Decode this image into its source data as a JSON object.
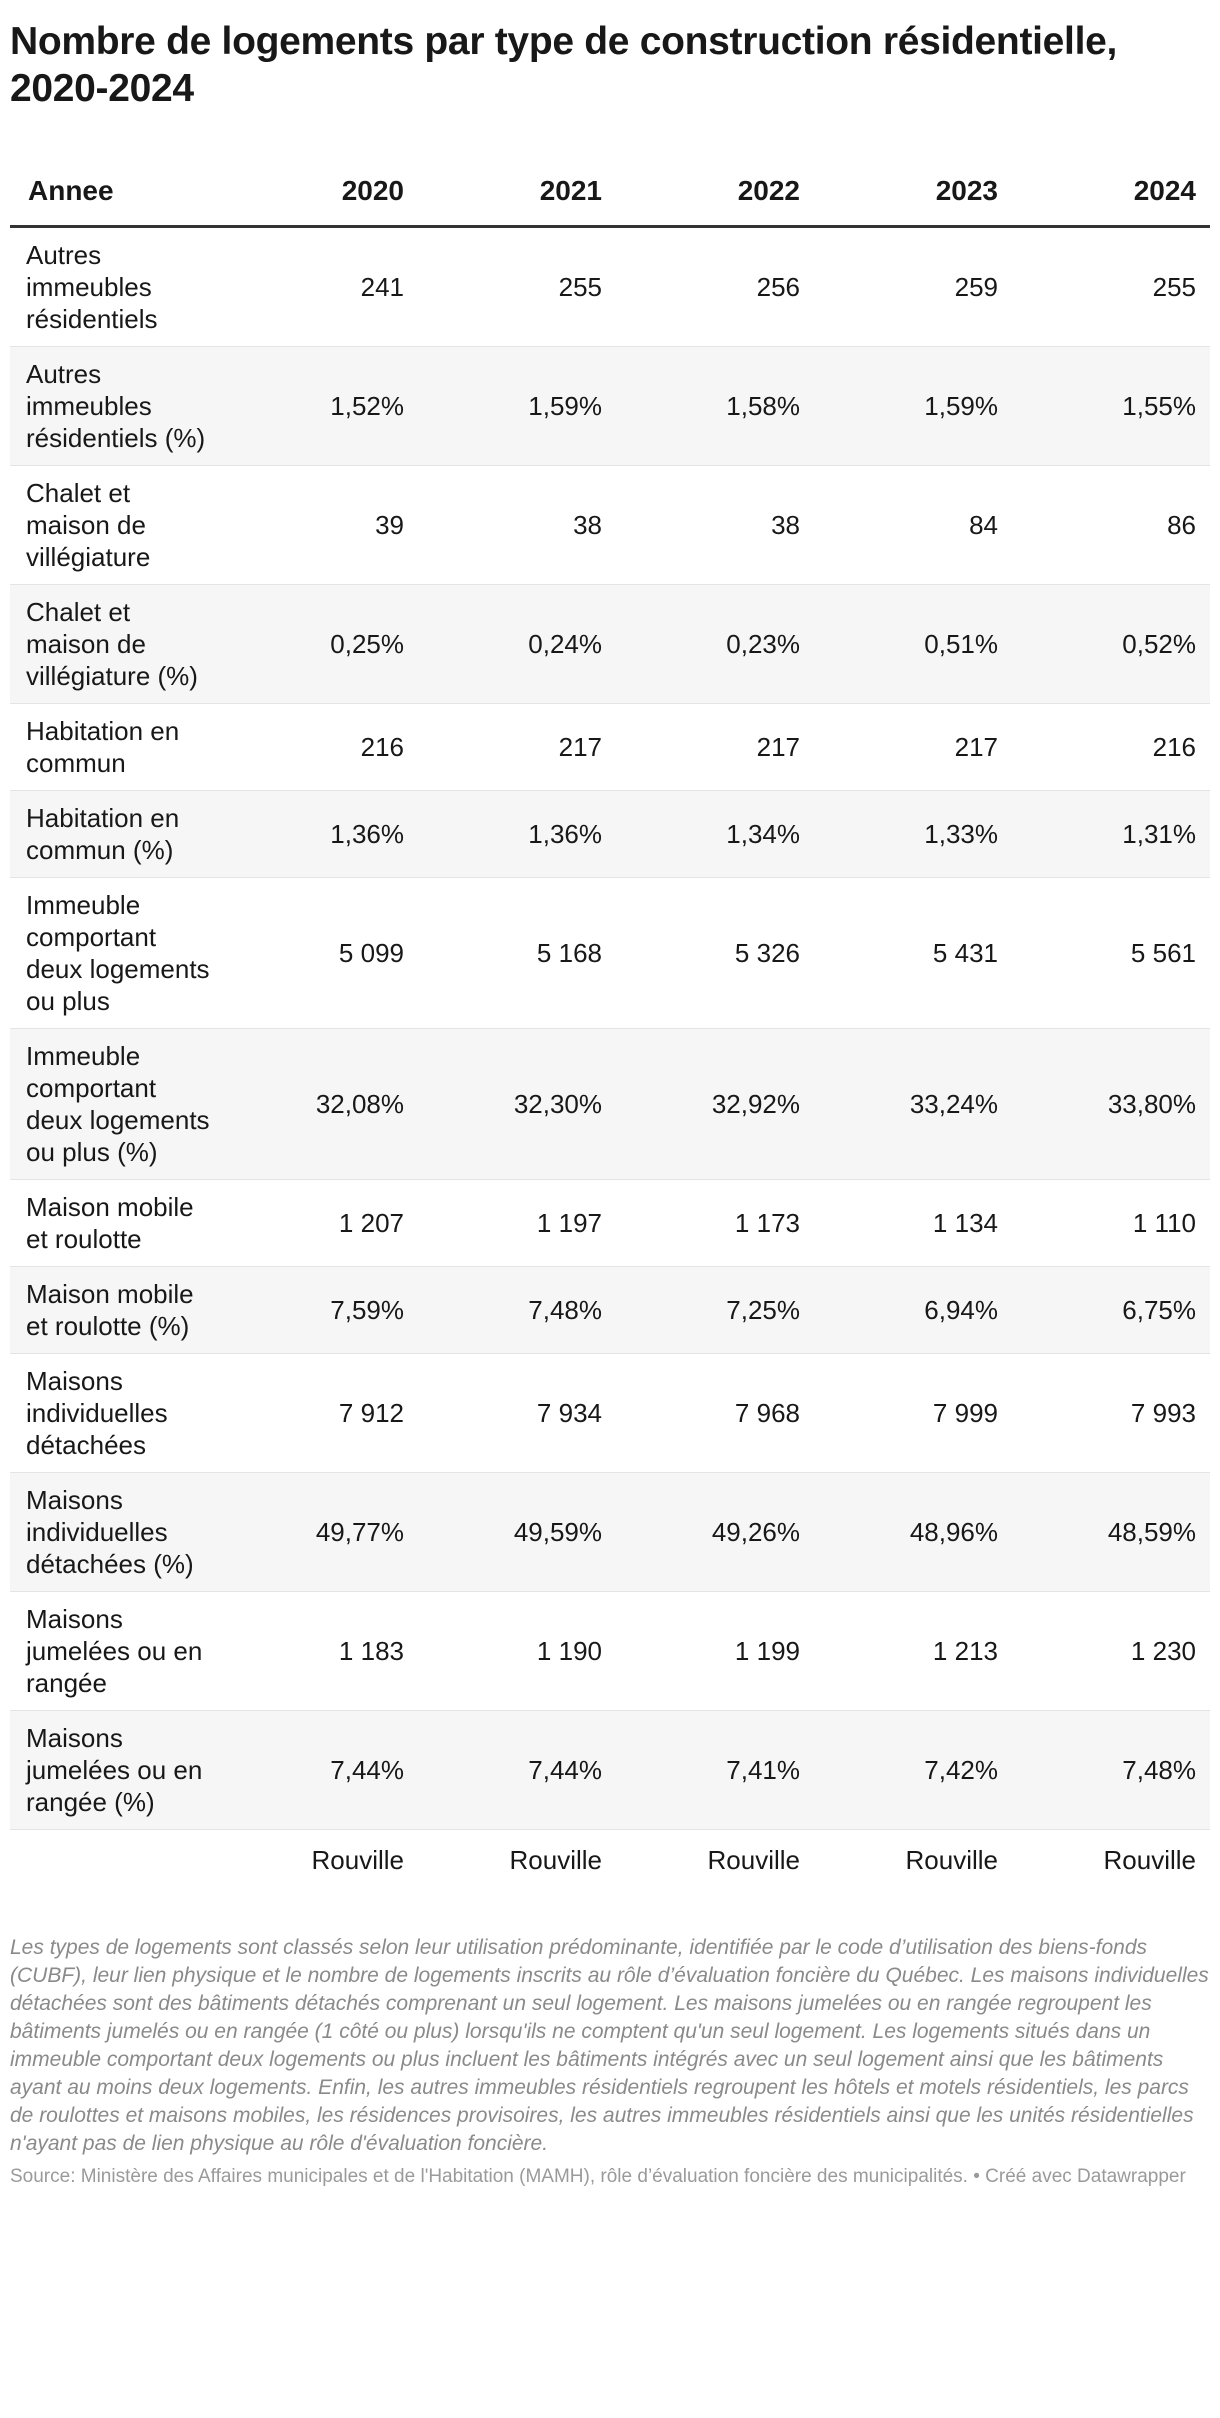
{
  "title": "Nombre de logements par type de construction résidentielle, 2020-2024",
  "header": {
    "first": "Annee",
    "years": [
      "2020",
      "2021",
      "2022",
      "2023",
      "2024"
    ]
  },
  "rows": [
    {
      "label": "Autres immeubles résidentiels",
      "values": [
        "241",
        "255",
        "256",
        "259",
        "255"
      ]
    },
    {
      "label": "Autres immeubles résidentiels (%)",
      "values": [
        "1,52%",
        "1,59%",
        "1,58%",
        "1,59%",
        "1,55%"
      ]
    },
    {
      "label": "Chalet et maison de villégiature",
      "values": [
        "39",
        "38",
        "38",
        "84",
        "86"
      ]
    },
    {
      "label": "Chalet et maison de villégiature (%)",
      "values": [
        "0,25%",
        "0,24%",
        "0,23%",
        "0,51%",
        "0,52%"
      ]
    },
    {
      "label": "Habitation en commun",
      "values": [
        "216",
        "217",
        "217",
        "217",
        "216"
      ]
    },
    {
      "label": "Habitation en commun (%)",
      "values": [
        "1,36%",
        "1,36%",
        "1,34%",
        "1,33%",
        "1,31%"
      ]
    },
    {
      "label": "Immeuble comportant deux logements ou plus",
      "values": [
        "5 099",
        "5 168",
        "5 326",
        "5 431",
        "5 561"
      ]
    },
    {
      "label": "Immeuble comportant deux logements ou plus (%)",
      "values": [
        "32,08%",
        "32,30%",
        "32,92%",
        "33,24%",
        "33,80%"
      ]
    },
    {
      "label": "Maison mobile et roulotte",
      "values": [
        "1 207",
        "1 197",
        "1 173",
        "1 134",
        "1 110"
      ]
    },
    {
      "label": "Maison mobile et roulotte (%)",
      "values": [
        "7,59%",
        "7,48%",
        "7,25%",
        "6,94%",
        "6,75%"
      ]
    },
    {
      "label": "Maisons individuelles détachées",
      "values": [
        "7 912",
        "7 934",
        "7 968",
        "7 999",
        "7 993"
      ]
    },
    {
      "label": "Maisons individuelles détachées (%)",
      "values": [
        "49,77%",
        "49,59%",
        "49,26%",
        "48,96%",
        "48,59%"
      ]
    },
    {
      "label": "Maisons jumelées ou en rangée",
      "values": [
        "1 183",
        "1 190",
        "1 199",
        "1 213",
        "1 230"
      ]
    },
    {
      "label": "Maisons jumelées ou en rangée (%)",
      "values": [
        "7,44%",
        "7,44%",
        "7,41%",
        "7,42%",
        "7,48%"
      ]
    }
  ],
  "footer": {
    "values": [
      "Rouville",
      "Rouville",
      "Rouville",
      "Rouville",
      "Rouville"
    ]
  },
  "notes": "Les types de logements sont classés selon leur utilisation prédominante, identifiée par le code d’utilisation des biens-fonds (CUBF), leur lien physique et le nombre de logements inscrits au rôle d’évaluation foncière du Québec. Les maisons individuelles détachées sont des bâtiments détachés comprenant un seul logement. Les maisons jumelées ou en rangée regroupent les bâtiments jumelés ou en rangée (1 côté ou plus) lorsqu'ils ne comptent qu'un seul logement. Les logements situés dans un immeuble comportant deux logements ou plus incluent les bâtiments intégrés avec un seul logement ainsi que les bâtiments ayant au moins deux logements. Enfin, les autres immeubles résidentiels regroupent les hôtels et motels résidentiels, les parcs de roulottes et maisons mobiles, les résidences provisoires, les autres immeubles résidentiels ainsi que les unités résidentielles n'ayant pas de lien physique au rôle d'évaluation foncière.",
  "source": "Source: Ministère des Affaires municipales et de l'Habitation (MAMH), rôle d’évaluation foncière des municipalités. • Créé avec Datawrapper"
}
